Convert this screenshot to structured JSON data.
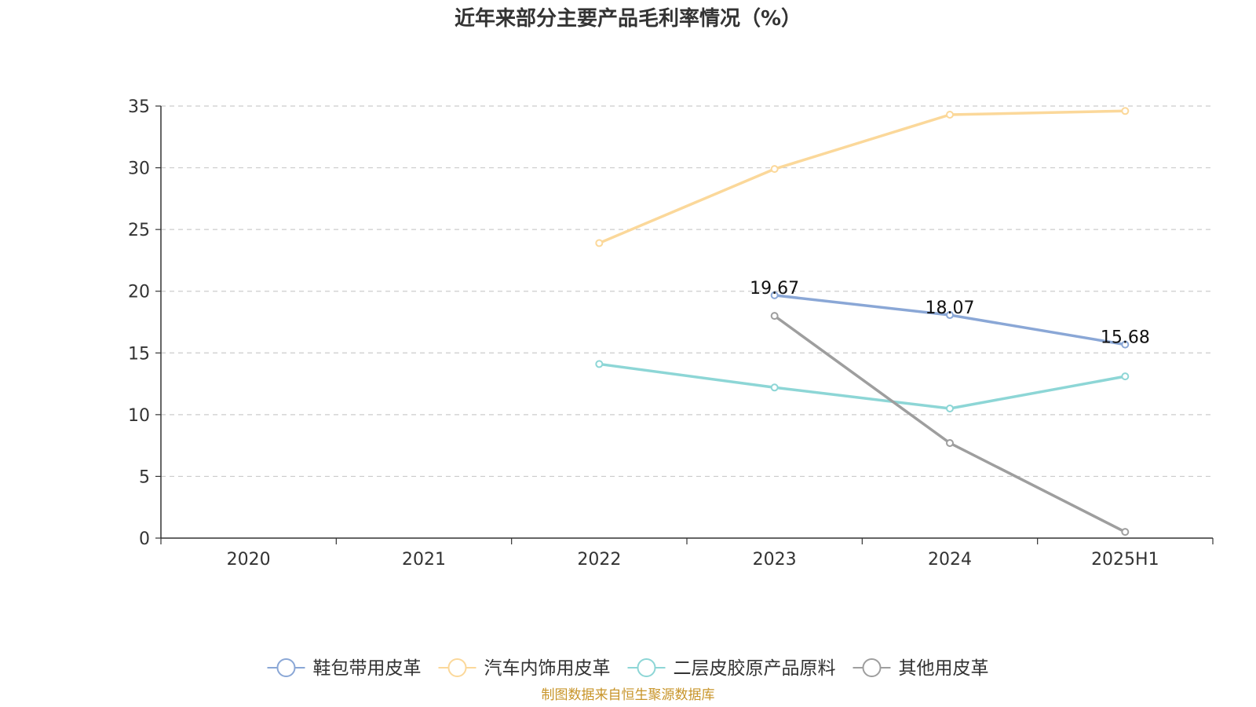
{
  "chart_data": {
    "type": "line",
    "title": "近年来部分主要产品毛利率情况（%）",
    "categories": [
      "2020",
      "2021",
      "2022",
      "2023",
      "2024",
      "2025H1"
    ],
    "ylim": [
      0,
      35
    ],
    "yticks": [
      0,
      5,
      10,
      15,
      20,
      25,
      30,
      35
    ],
    "grid": true,
    "legend_position": "bottom",
    "series": [
      {
        "name": "鞋包带用皮革",
        "color": "#8aa7d6",
        "values": [
          null,
          null,
          null,
          19.67,
          18.07,
          15.68
        ],
        "labels": [
          "",
          "",
          "",
          "19.67",
          "18.07",
          "15.68"
        ]
      },
      {
        "name": "汽车内饰用皮革",
        "color": "#fbd89a",
        "values": [
          null,
          null,
          23.9,
          29.9,
          34.3,
          34.6
        ],
        "labels": [
          "",
          "",
          "",
          "",
          "",
          ""
        ]
      },
      {
        "name": "二层皮胶原产品原料",
        "color": "#8dd6d6",
        "values": [
          null,
          null,
          14.1,
          12.2,
          10.5,
          13.1
        ],
        "labels": [
          "",
          "",
          "",
          "",
          "",
          ""
        ]
      },
      {
        "name": "其他用皮革",
        "color": "#9e9e9e",
        "values": [
          null,
          null,
          null,
          18.0,
          7.7,
          0.5
        ],
        "labels": [
          "",
          "",
          "",
          "",
          "",
          ""
        ]
      }
    ]
  },
  "source_note": "制图数据来自恒生聚源数据库"
}
